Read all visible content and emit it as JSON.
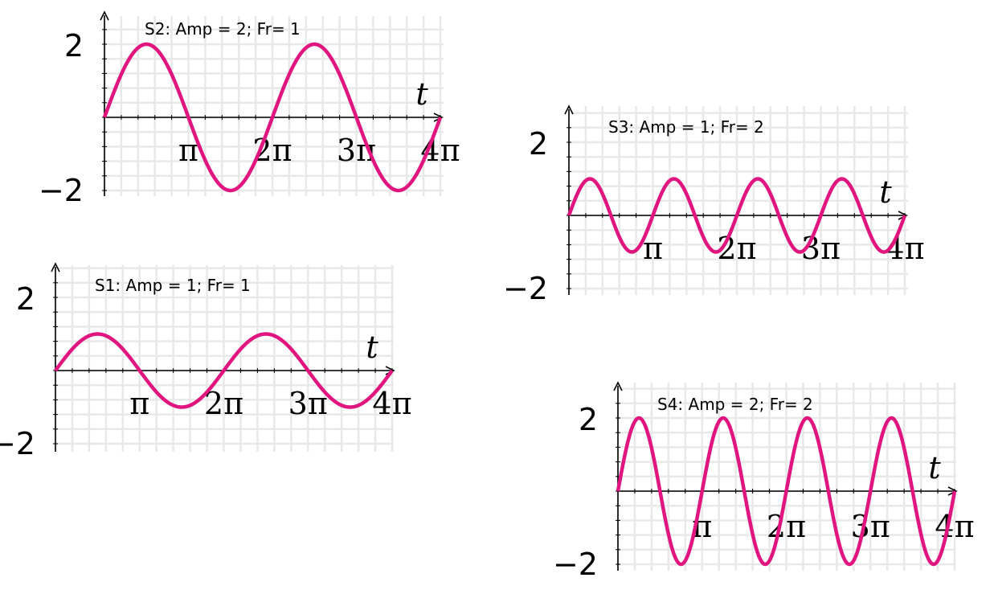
{
  "colors": {
    "curve": "#e0157f",
    "grid": "#e8e8e8",
    "axis": "#000000"
  },
  "chart_data": [
    {
      "type": "line",
      "title": "",
      "annotation": "S2: Amp = 2; Fr= 1",
      "amplitude": 2,
      "frequency": 1,
      "function": "Amp*sin(Fr*t)",
      "xlabel": "t",
      "xlim": [
        0,
        12.566
      ],
      "ylim": [
        -2,
        2
      ],
      "xticks": [
        "π",
        "2π",
        "3π",
        "4π"
      ],
      "yticks": [
        "2",
        "−2"
      ],
      "grid": true
    },
    {
      "type": "line",
      "title": "",
      "annotation": "S3: Amp = 1; Fr= 2",
      "amplitude": 1,
      "frequency": 2,
      "function": "Amp*sin(Fr*t)",
      "xlabel": "t",
      "xlim": [
        0,
        12.566
      ],
      "ylim": [
        -2,
        2
      ],
      "xticks": [
        "π",
        "2π",
        "3π",
        "4π"
      ],
      "yticks": [
        "2",
        "−2"
      ],
      "grid": true
    },
    {
      "type": "line",
      "title": "",
      "annotation": "S1: Amp = 1; Fr= 1",
      "amplitude": 1,
      "frequency": 1,
      "function": "Amp*sin(Fr*t)",
      "xlabel": "t",
      "xlim": [
        0,
        12.566
      ],
      "ylim": [
        -2,
        2
      ],
      "xticks": [
        "π",
        "2π",
        "3π",
        "4π"
      ],
      "yticks": [
        "2",
        "−2"
      ],
      "grid": true
    },
    {
      "type": "line",
      "title": "",
      "annotation": "S4: Amp = 2; Fr= 2",
      "amplitude": 2,
      "frequency": 2,
      "function": "Amp*sin(Fr*t)",
      "xlabel": "t",
      "xlim": [
        0,
        12.566
      ],
      "ylim": [
        -2,
        2
      ],
      "xticks": [
        "π",
        "2π",
        "3π",
        "4π"
      ],
      "yticks": [
        "2",
        "−2"
      ],
      "grid": true
    }
  ]
}
